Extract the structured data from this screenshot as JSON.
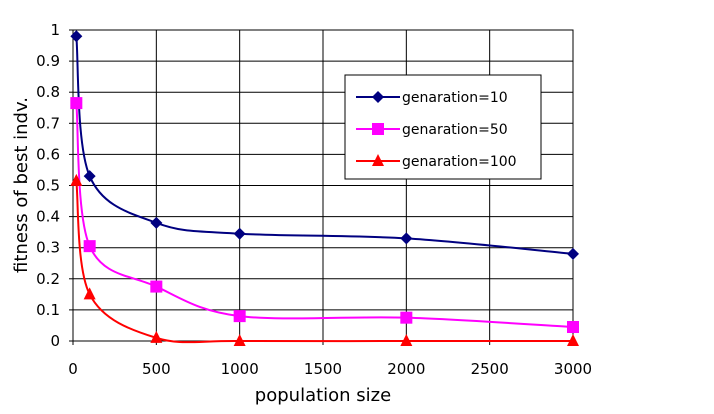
{
  "chart_data": {
    "type": "line",
    "xlabel": "population size",
    "ylabel": "fitness of best indv.",
    "xlim": [
      0,
      3000
    ],
    "ylim": [
      0,
      1
    ],
    "x_ticks": [
      "0",
      "500",
      "1000",
      "1500",
      "2000",
      "2500",
      "3000"
    ],
    "y_ticks": [
      "0",
      "0.1",
      "0.2",
      "0.3",
      "0.4",
      "0.5",
      "0.6",
      "0.7",
      "0.8",
      "0.9",
      "1"
    ],
    "grid": true,
    "smooth": true,
    "legend_position": "top-right",
    "series": [
      {
        "name": "genaration=10",
        "color": "#000080",
        "marker": "diamond",
        "x": [
          20,
          100,
          500,
          1000,
          2000,
          3000
        ],
        "y": [
          0.98,
          0.53,
          0.38,
          0.345,
          0.33,
          0.28
        ]
      },
      {
        "name": "genaration=50",
        "color": "#ff00ff",
        "marker": "square",
        "x": [
          20,
          100,
          500,
          1000,
          2000,
          3000
        ],
        "y": [
          0.765,
          0.305,
          0.175,
          0.08,
          0.075,
          0.045
        ]
      },
      {
        "name": "genaration=100",
        "color": "#ff0000",
        "marker": "triangle",
        "x": [
          20,
          100,
          500,
          1000,
          2000,
          3000
        ],
        "y": [
          0.515,
          0.15,
          0.01,
          0.0,
          0.0,
          0.0
        ]
      }
    ]
  }
}
